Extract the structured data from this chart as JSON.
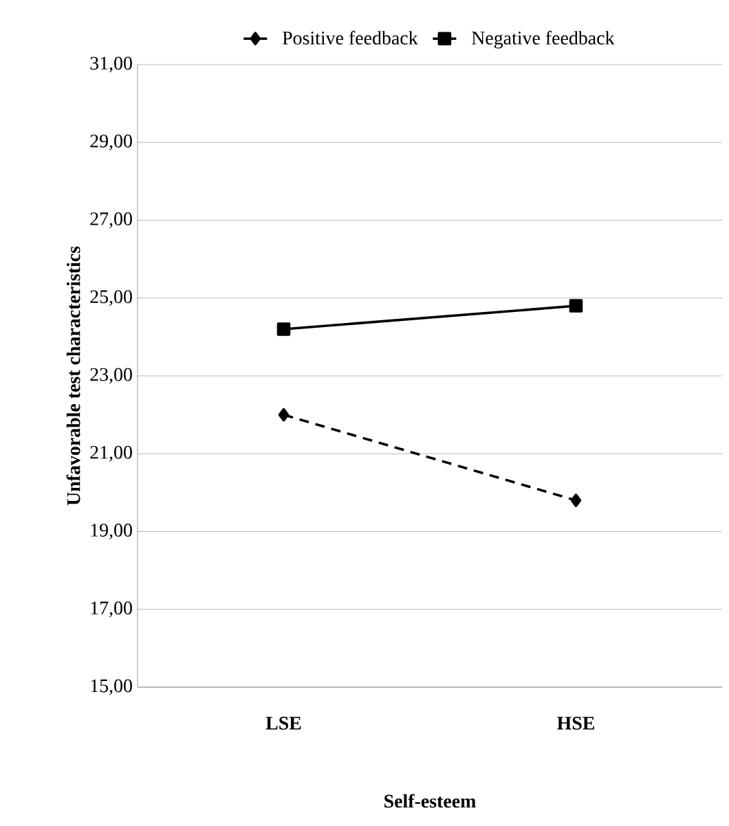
{
  "chart_data": {
    "type": "line",
    "xlabel": "Self-esteem",
    "ylabel": "Unfavorable test characteristics",
    "categories": [
      "LSE",
      "HSE"
    ],
    "series": [
      {
        "name": "Positive feedback",
        "color": "#000000",
        "values": [
          22.0,
          19.8
        ],
        "marker": "diamond",
        "line_style": "dashed"
      },
      {
        "name": "Negative feedback",
        "color": "#000000",
        "values": [
          24.2,
          24.8
        ],
        "marker": "square",
        "line_style": "solid"
      }
    ],
    "ylim": [
      15,
      31
    ],
    "yticks": [
      {
        "value": 15,
        "label": "15,00"
      },
      {
        "value": 17,
        "label": "17,00"
      },
      {
        "value": 19,
        "label": "19,00"
      },
      {
        "value": 21,
        "label": "21,00"
      },
      {
        "value": 23,
        "label": "23,00"
      },
      {
        "value": 25,
        "label": "25,00"
      },
      {
        "value": 27,
        "label": "27,00"
      },
      {
        "value": 29,
        "label": "29,00"
      },
      {
        "value": 31,
        "label": "31,00"
      }
    ],
    "grid": "y",
    "legend": "top"
  }
}
